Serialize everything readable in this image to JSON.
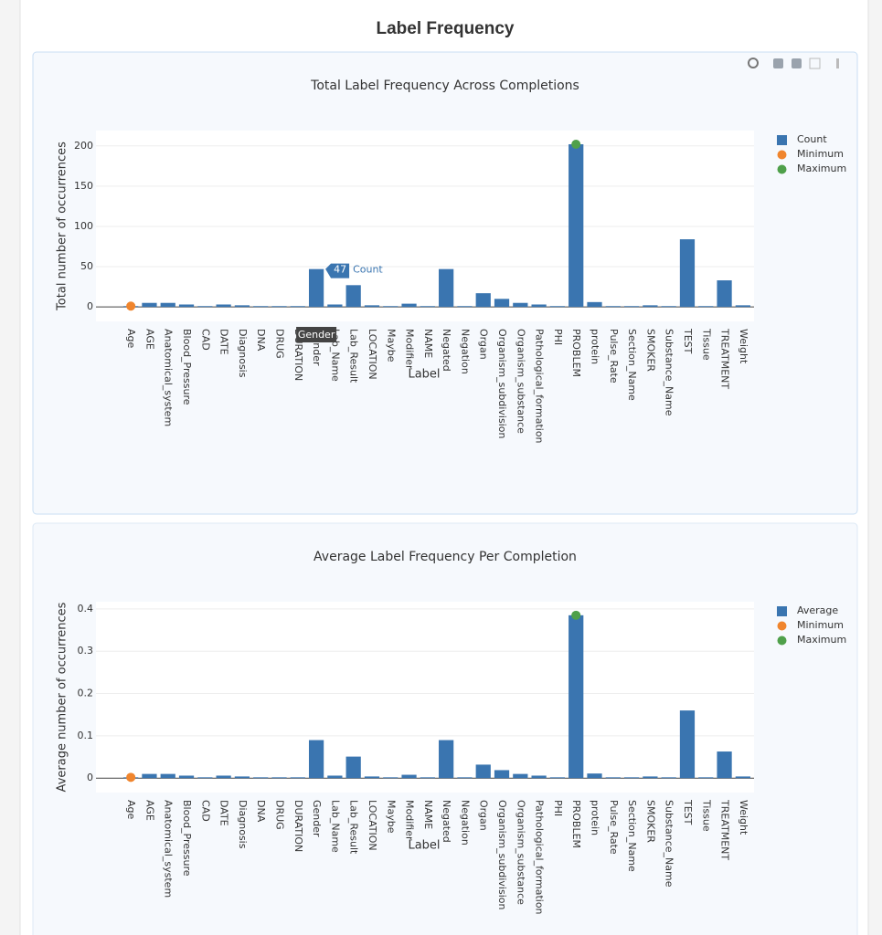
{
  "header": {
    "title": "Label Frequency"
  },
  "chart_data": [
    {
      "type": "bar",
      "title": "Total Label Frequency Across Completions",
      "x_label": "Label",
      "y_label": "Total number of occurrences",
      "categories": [
        "Age",
        "AGE",
        "Anatomical_system",
        "Blood_Pressure",
        "CAD",
        "DATE",
        "Diagnosis",
        "DNA",
        "DRUG",
        "DURATION",
        "Gender",
        "Lab_Name",
        "Lab_Result",
        "LOCATION",
        "Maybe",
        "Modifier",
        "NAME",
        "Negated",
        "Negation",
        "Organ",
        "Organism_subdivision",
        "Organism_substance",
        "Pathological_formation",
        "PHI",
        "PROBLEM",
        "protein",
        "Pulse_Rate",
        "Section_Name",
        "SMOKER",
        "Substance_Name",
        "TEST",
        "Tissue",
        "TREATMENT",
        "Weight"
      ],
      "series": [
        {
          "name": "Count",
          "color": "#3a75b0",
          "values": [
            1,
            5,
            5,
            3,
            1,
            3,
            2,
            1,
            1,
            1,
            47,
            3,
            27,
            2,
            1,
            4,
            1,
            47,
            1,
            17,
            10,
            5,
            3,
            1,
            202,
            6,
            1,
            1,
            2,
            1,
            84,
            1,
            33,
            2
          ]
        }
      ],
      "markers": [
        {
          "name": "Minimum",
          "color": "#f0852d",
          "category": "Age",
          "value": 1
        },
        {
          "name": "Maximum",
          "color": "#4fa04a",
          "category": "PROBLEM",
          "value": 202
        }
      ],
      "ylim": [
        -18,
        219
      ],
      "yticks": [
        0,
        50,
        100,
        150,
        200
      ],
      "grid": true,
      "legend": "top-right",
      "hover": {
        "category": "Gender",
        "series": "Count",
        "value": 47
      }
    },
    {
      "type": "bar",
      "title": "Average Label Frequency Per Completion",
      "x_label": "Label",
      "y_label": "Average number of occurrences",
      "categories": [
        "Age",
        "AGE",
        "Anatomical_system",
        "Blood_Pressure",
        "CAD",
        "DATE",
        "Diagnosis",
        "DNA",
        "DRUG",
        "DURATION",
        "Gender",
        "Lab_Name",
        "Lab_Result",
        "LOCATION",
        "Maybe",
        "Modifier",
        "NAME",
        "Negated",
        "Negation",
        "Organ",
        "Organism_subdivision",
        "Organism_substance",
        "Pathological_formation",
        "PHI",
        "PROBLEM",
        "protein",
        "Pulse_Rate",
        "Section_Name",
        "SMOKER",
        "Substance_Name",
        "TEST",
        "Tissue",
        "TREATMENT",
        "Weight"
      ],
      "series": [
        {
          "name": "Average",
          "color": "#3a75b0",
          "values": [
            0.002,
            0.01,
            0.01,
            0.006,
            0.002,
            0.006,
            0.004,
            0.002,
            0.002,
            0.002,
            0.09,
            0.006,
            0.051,
            0.004,
            0.002,
            0.008,
            0.002,
            0.09,
            0.002,
            0.032,
            0.019,
            0.01,
            0.006,
            0.002,
            0.385,
            0.011,
            0.002,
            0.002,
            0.004,
            0.002,
            0.16,
            0.002,
            0.063,
            0.004
          ]
        }
      ],
      "markers": [
        {
          "name": "Minimum",
          "color": "#f0852d",
          "category": "Age",
          "value": 0.002
        },
        {
          "name": "Maximum",
          "color": "#4fa04a",
          "category": "PROBLEM",
          "value": 0.385
        }
      ],
      "ylim": [
        -0.034,
        0.417
      ],
      "yticks": [
        0,
        0.1,
        0.2,
        0.3,
        0.4
      ],
      "grid": true,
      "legend": "top-right"
    }
  ]
}
